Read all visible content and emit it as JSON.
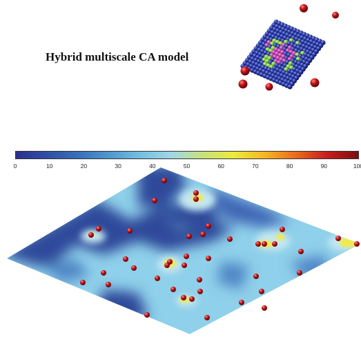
{
  "title": "Hybrid multiscale CA model",
  "colorbar": {
    "ticks": [
      "0",
      "10",
      "20",
      "30",
      "40",
      "50",
      "60",
      "70",
      "80",
      "90",
      "100"
    ],
    "colors": [
      "#2c2f8e",
      "#2f4fa6",
      "#3a6fbc",
      "#4f98cf",
      "#74bfe1",
      "#9fd7e6",
      "#c6e27c",
      "#ecea3a",
      "#f6b523",
      "#ea6a1e",
      "#c81d1d",
      "#7e0f10"
    ]
  },
  "palette": {
    "dark_blue": "#2e4a9a",
    "mid_blue": "#4f86c6",
    "light_blue": "#8fd0ea",
    "pale": "#c4e7f1",
    "yellow": "#f2ea48",
    "cell_red": "#c0141a",
    "cluster_blue": "#23329a",
    "cluster_green": "#7bc43d",
    "cluster_magenta": "#b63ea8"
  },
  "icons": [
    "cell-sphere-icon"
  ]
}
